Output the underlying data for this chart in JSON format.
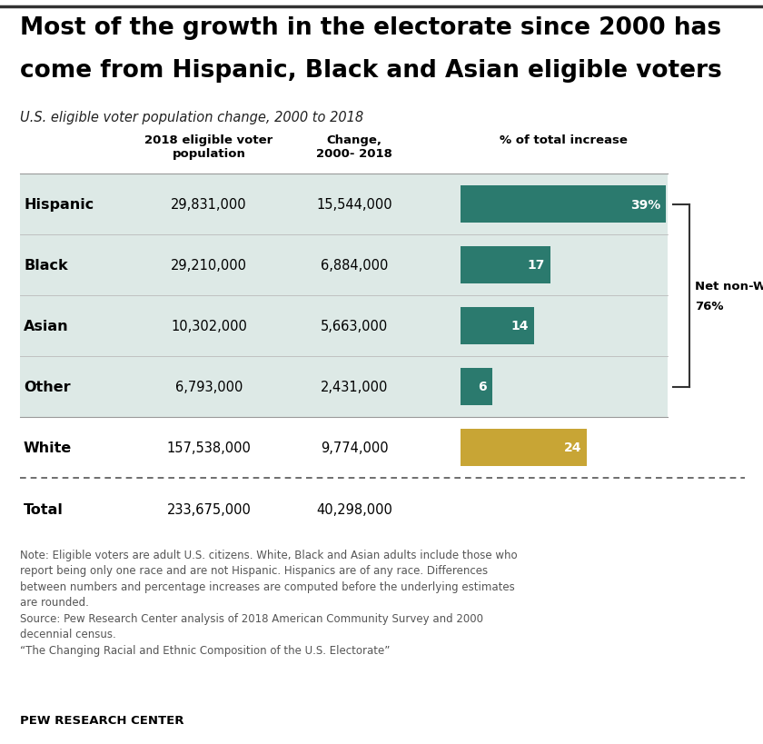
{
  "title_line1": "Most of the growth in the electorate since 2000 has",
  "title_line2": "come from Hispanic, Black and Asian eligible voters",
  "subtitle": "U.S. eligible voter population change, 2000 to 2018",
  "col_headers": [
    "2018 eligible voter\npopulation",
    "Change,\n2000- 2018",
    "% of total increase"
  ],
  "rows": [
    {
      "label": "Hispanic",
      "pop": "29,831,000",
      "change": "15,544,000",
      "pct": 39,
      "pct_label": "39%",
      "color": "#2b7a6e"
    },
    {
      "label": "Black",
      "pop": "29,210,000",
      "change": "6,884,000",
      "pct": 17,
      "pct_label": "17",
      "color": "#2b7a6e"
    },
    {
      "label": "Asian",
      "pop": "10,302,000",
      "change": "5,663,000",
      "pct": 14,
      "pct_label": "14",
      "color": "#2b7a6e"
    },
    {
      "label": "Other",
      "pop": "6,793,000",
      "change": "2,431,000",
      "pct": 6,
      "pct_label": "6",
      "color": "#2b7a6e"
    }
  ],
  "white_row": {
    "label": "White",
    "pop": "157,538,000",
    "change": "9,774,000",
    "pct": 24,
    "pct_label": "24",
    "color": "#c8a535"
  },
  "total_row": {
    "label": "Total",
    "pop": "233,675,000",
    "change": "40,298,000"
  },
  "net_nonwhite_line1": "Net non-White",
  "net_nonwhite_line2": "76%",
  "note_line1": "Note: Eligible voters are adult U.S. citizens. White, Black and Asian adults include those who",
  "note_line2": "report being only one race and are not Hispanic. Hispanics are of any race. Differences",
  "note_line3": "between numbers and percentage increases are computed before the underlying estimates",
  "note_line4": "are rounded.",
  "note_line5": "Source: Pew Research Center analysis of 2018 American Community Survey and 2000",
  "note_line6": "decennial census.",
  "note_line7": "“The Changing Racial and Ethnic Composition of the U.S. Electorate”",
  "footer": "PEW RESEARCH CENTER",
  "bg_color": "#ffffff",
  "teal_bg": "#dde9e6",
  "bar_max_pct": 39
}
